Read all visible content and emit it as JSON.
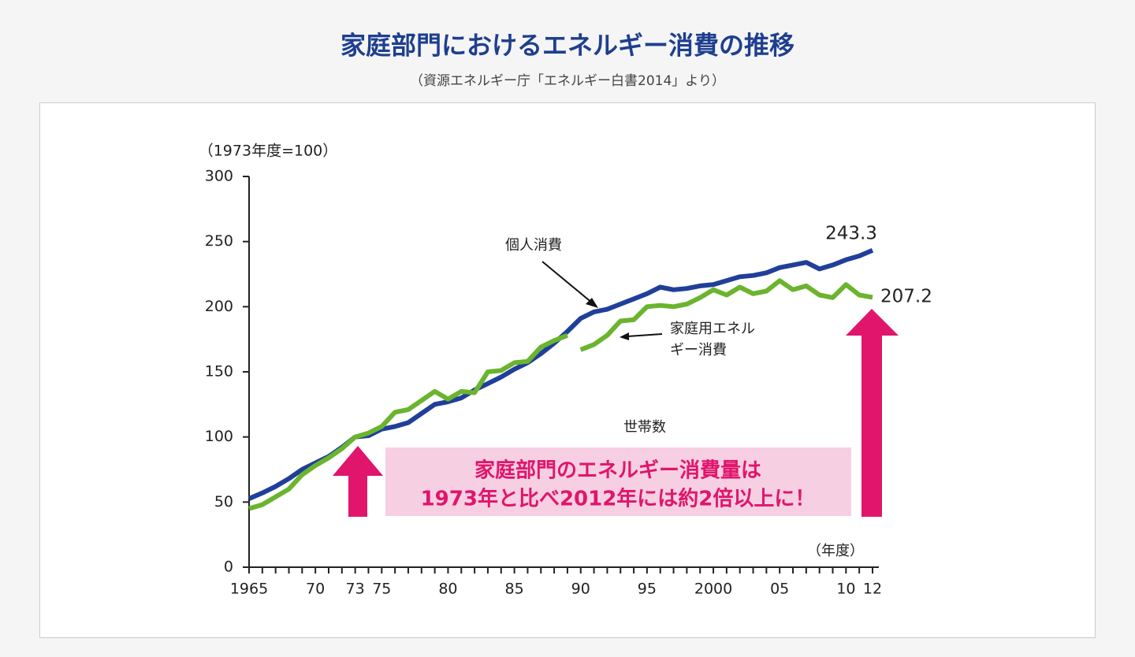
{
  "title": "家庭部門におけるエネルギー消費の推移",
  "subtitle": "（資源エネルギー庁「エネルギー白書2014」より）",
  "chart_data": {
    "type": "line",
    "ylabel": "（1973年度=100）",
    "xlabel": "（年度）",
    "xlim": [
      1965,
      2012
    ],
    "ylim": [
      0,
      300
    ],
    "yticks": [
      0,
      50,
      100,
      150,
      200,
      250,
      300
    ],
    "xticks": [
      {
        "value": 1965,
        "label": "1965"
      },
      {
        "value": 1970,
        "label": "70"
      },
      {
        "value": 1973,
        "label": "73"
      },
      {
        "value": 1975,
        "label": "75"
      },
      {
        "value": 1980,
        "label": "80"
      },
      {
        "value": 1985,
        "label": "85"
      },
      {
        "value": 1990,
        "label": "90"
      },
      {
        "value": 1995,
        "label": "95"
      },
      {
        "value": 2000,
        "label": "2000"
      },
      {
        "value": 2005,
        "label": "05"
      },
      {
        "value": 2010,
        "label": "10"
      },
      {
        "value": 2012,
        "label": "12"
      }
    ],
    "xminor": [
      1965,
      1966,
      1967,
      1968,
      1969,
      1970,
      1971,
      1972,
      1973,
      1974,
      1975,
      1976,
      1977,
      1978,
      1979,
      1980,
      1981,
      1982,
      1983,
      1984,
      1985,
      1986,
      1987,
      1988,
      1989,
      1990,
      1991,
      1992,
      1993,
      1994,
      1995,
      1996,
      1997,
      1998,
      1999,
      2000,
      2001,
      2002,
      2003,
      2004,
      2005,
      2006,
      2007,
      2008,
      2009,
      2010,
      2011,
      2012
    ],
    "series": [
      {
        "name": "個人消費",
        "color": "#1f3f99",
        "x": [
          1965,
          1966,
          1967,
          1968,
          1969,
          1970,
          1971,
          1972,
          1973,
          1974,
          1975,
          1976,
          1977,
          1978,
          1979,
          1980,
          1981,
          1982,
          1983,
          1984,
          1985,
          1986,
          1987,
          1988,
          1989,
          1990,
          1991,
          1992,
          1993,
          1994,
          1995,
          1996,
          1997,
          1998,
          1999,
          2000,
          2001,
          2002,
          2003,
          2004,
          2005,
          2006,
          2007,
          2008,
          2009,
          2010,
          2011,
          2012
        ],
        "values": [
          52.6,
          57,
          62,
          68,
          75,
          80,
          85,
          92,
          100,
          101,
          106,
          108,
          111,
          118,
          125,
          127,
          130,
          136,
          141,
          146,
          152,
          157,
          164,
          172,
          181,
          191,
          196,
          198,
          202,
          206,
          210,
          215,
          213,
          214,
          216,
          217,
          220,
          223,
          224,
          226,
          230,
          232,
          234,
          229,
          232,
          236,
          239,
          243.3
        ]
      },
      {
        "name": "家庭用エネルギー消費",
        "color": "#6ab42e",
        "x": [
          1965,
          1966,
          1967,
          1968,
          1969,
          1970,
          1971,
          1972,
          1973,
          1974,
          1975,
          1976,
          1977,
          1978,
          1979,
          1980,
          1981,
          1982,
          1983,
          1984,
          1985,
          1986,
          1987,
          1988,
          1989,
          null,
          1990,
          1991,
          1992,
          1993,
          1994,
          1995,
          1996,
          1997,
          1998,
          1999,
          2000,
          2001,
          2002,
          2003,
          2004,
          2005,
          2006,
          2007,
          2008,
          2009,
          2010,
          2011,
          2012
        ],
        "values": [
          45,
          48,
          54,
          60,
          71,
          78,
          84,
          91,
          100,
          103,
          108,
          119,
          121,
          128,
          135,
          129,
          135,
          134,
          150,
          151,
          157,
          158,
          169,
          174,
          178,
          null,
          167,
          171,
          178,
          189,
          190,
          200,
          201,
          200,
          202,
          207,
          213,
          209,
          215,
          210,
          212,
          220,
          213,
          216,
          209,
          207,
          217,
          209,
          207.2
        ]
      }
    ],
    "annotations": [
      "個人消費",
      "家庭用エネル",
      "ギー消費",
      "世帯数"
    ],
    "callout": [
      "家庭部門のエネルギー消費量は",
      "1973年と比べ2012年には約2倍以上に！"
    ]
  }
}
